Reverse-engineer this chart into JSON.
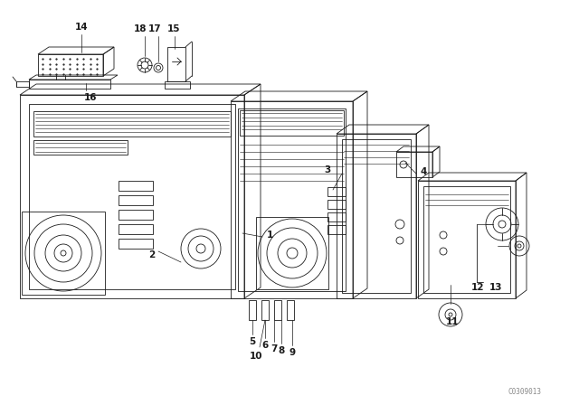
{
  "bg_color": "#ffffff",
  "diagram_color": "#1a1a1a",
  "watermark": "C0309013"
}
